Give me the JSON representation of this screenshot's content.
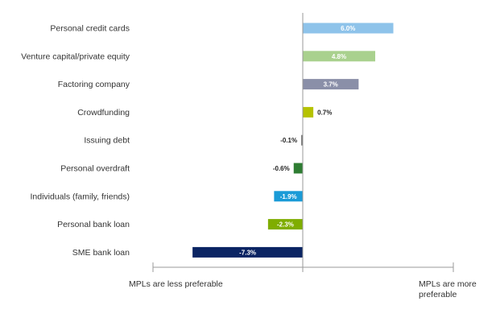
{
  "chart_data": {
    "type": "bar",
    "orientation": "horizontal",
    "categories": [
      "Personal credit cards",
      "Venture capital/private equity",
      "Factoring company",
      "Crowdfunding",
      "Issuing debt",
      "Personal overdraft",
      "Individuals (family, friends)",
      "Personal bank loan",
      "SME bank loan"
    ],
    "values": [
      6.0,
      4.8,
      3.7,
      0.7,
      -0.1,
      -0.6,
      -1.9,
      -2.3,
      -7.3
    ],
    "value_labels": [
      "6.0%",
      "4.8%",
      "3.7%",
      "0.7%",
      "-0.1%",
      "-0.6%",
      "-1.9%",
      "-2.3%",
      "-7.3%"
    ],
    "colors": [
      "#8ec3ea",
      "#a9d18e",
      "#8a8fa8",
      "#b5c200",
      "#6e6e6e",
      "#2e7d32",
      "#1a9bd7",
      "#7fad00",
      "#0a2463"
    ],
    "label_inside": [
      true,
      true,
      true,
      false,
      false,
      false,
      true,
      true,
      true
    ],
    "xlim": [
      -10,
      10
    ],
    "grid": false,
    "legend": "none",
    "left_note": "MPLs are less preferable",
    "right_note": "MPLs are more preferable"
  }
}
